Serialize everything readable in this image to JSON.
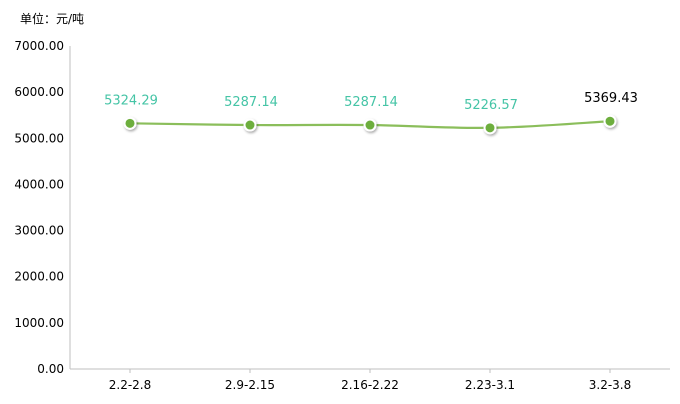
{
  "unit_label": "单位：元/吨",
  "colors": {
    "line": "#8BBE5B",
    "point_fill": "#6DAE3E",
    "point_stroke": "#ffffff",
    "label_teal": "#45C4A6",
    "label_dark": "#000000",
    "axis": "#BFBFBF",
    "tick_text": "#000000"
  },
  "chart_data": {
    "type": "line",
    "title": "",
    "xlabel": "",
    "ylabel": "",
    "categories": [
      "2.2-2.8",
      "2.9-2.15",
      "2.16-2.22",
      "2.23-3.1",
      "3.2-3.8"
    ],
    "series": [
      {
        "values": [
          5324.29,
          5287.14,
          5287.14,
          5226.57,
          5369.43
        ]
      }
    ],
    "data_labels": [
      "5324.29",
      "5287.14",
      "5287.14",
      "5226.57",
      "5369.43"
    ],
    "label_colors": [
      "teal",
      "teal",
      "teal",
      "teal",
      "dark"
    ],
    "ylim": [
      0,
      7000
    ],
    "yticks": [
      "0.00",
      "1000.00",
      "2000.00",
      "3000.00",
      "4000.00",
      "5000.00",
      "6000.00",
      "7000.00"
    ],
    "ytick_values": [
      0,
      1000,
      2000,
      3000,
      4000,
      5000,
      6000,
      7000
    ],
    "grid": false,
    "legend": "none"
  }
}
